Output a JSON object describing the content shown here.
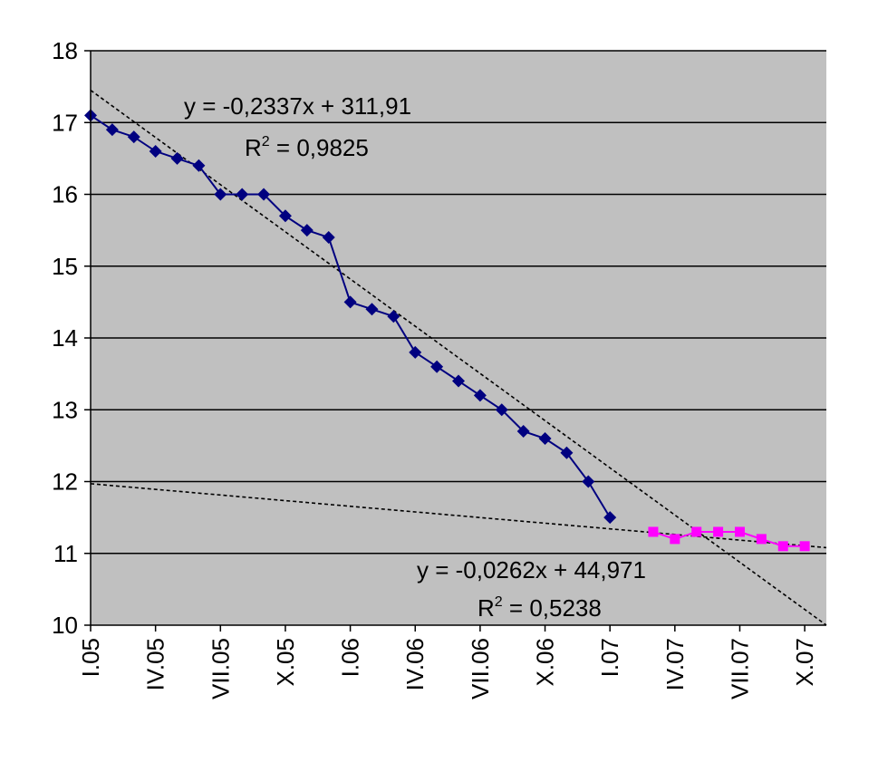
{
  "chart_data": {
    "type": "line",
    "title": "",
    "xlabel": "",
    "ylabel": "",
    "ylim": [
      10,
      18
    ],
    "yticks": [
      10,
      11,
      12,
      13,
      14,
      15,
      16,
      17,
      18
    ],
    "xticks": [
      "I.05",
      "IV.05",
      "VII.05",
      "X.05",
      "I.06",
      "IV.06",
      "VII.06",
      "X.06",
      "I.07",
      "IV.07",
      "VII.07",
      "X.07"
    ],
    "x_axis_unit": "month",
    "x_axis_start": "I.05",
    "x_axis_end": "XI.07",
    "grid": {
      "horizontal": true,
      "vertical": false
    },
    "plot_background": "#c0c0c0",
    "series": [
      {
        "color": "#000080",
        "marker": "diamond",
        "points": [
          [
            "I.05",
            17.1
          ],
          [
            "II.05",
            16.9
          ],
          [
            "III.05",
            16.8
          ],
          [
            "IV.05",
            16.6
          ],
          [
            "V.05",
            16.5
          ],
          [
            "VI.05",
            16.4
          ],
          [
            "VII.05",
            16.0
          ],
          [
            "VIII.05",
            16.0
          ],
          [
            "IX.05",
            16.0
          ],
          [
            "X.05",
            15.7
          ],
          [
            "XI.05",
            15.5
          ],
          [
            "XII.05",
            15.4
          ],
          [
            "I.06",
            14.5
          ],
          [
            "II.06",
            14.4
          ],
          [
            "III.06",
            14.3
          ],
          [
            "IV.06",
            13.8
          ],
          [
            "V.06",
            13.6
          ],
          [
            "VI.06",
            13.4
          ],
          [
            "VII.06",
            13.2
          ],
          [
            "VIII.06",
            13.0
          ],
          [
            "IX.06",
            12.7
          ],
          [
            "X.06",
            12.6
          ],
          [
            "XI.06",
            12.4
          ],
          [
            "XII.06",
            12.0
          ],
          [
            "I.07",
            11.5
          ]
        ]
      },
      {
        "color": "#ff00ff",
        "marker": "square",
        "points": [
          [
            "III.07",
            11.3
          ],
          [
            "IV.07",
            11.2
          ],
          [
            "V.07",
            11.3
          ],
          [
            "VI.07",
            11.3
          ],
          [
            "VII.07",
            11.3
          ],
          [
            "VIII.07",
            11.2
          ],
          [
            "IX.07",
            11.1
          ],
          [
            "X.07",
            11.1
          ]
        ]
      }
    ],
    "trendlines": [
      {
        "style": "dashed",
        "color": "#000000",
        "from": [
          "I.05",
          17.45
        ],
        "to": [
          "XI.07",
          10.0
        ],
        "equation": "y = -0,2337x + 311,91",
        "r2_prefix": "R",
        "r2_sup": "2",
        "r2_value": " = 0,9825"
      },
      {
        "style": "dashed",
        "color": "#000000",
        "from": [
          "I.05",
          11.97
        ],
        "to": [
          "XI.07",
          11.08
        ],
        "equation": "y = -0,0262x + 44,971",
        "r2_prefix": "R",
        "r2_sup": "2",
        "r2_value": " = 0,5238"
      }
    ]
  }
}
